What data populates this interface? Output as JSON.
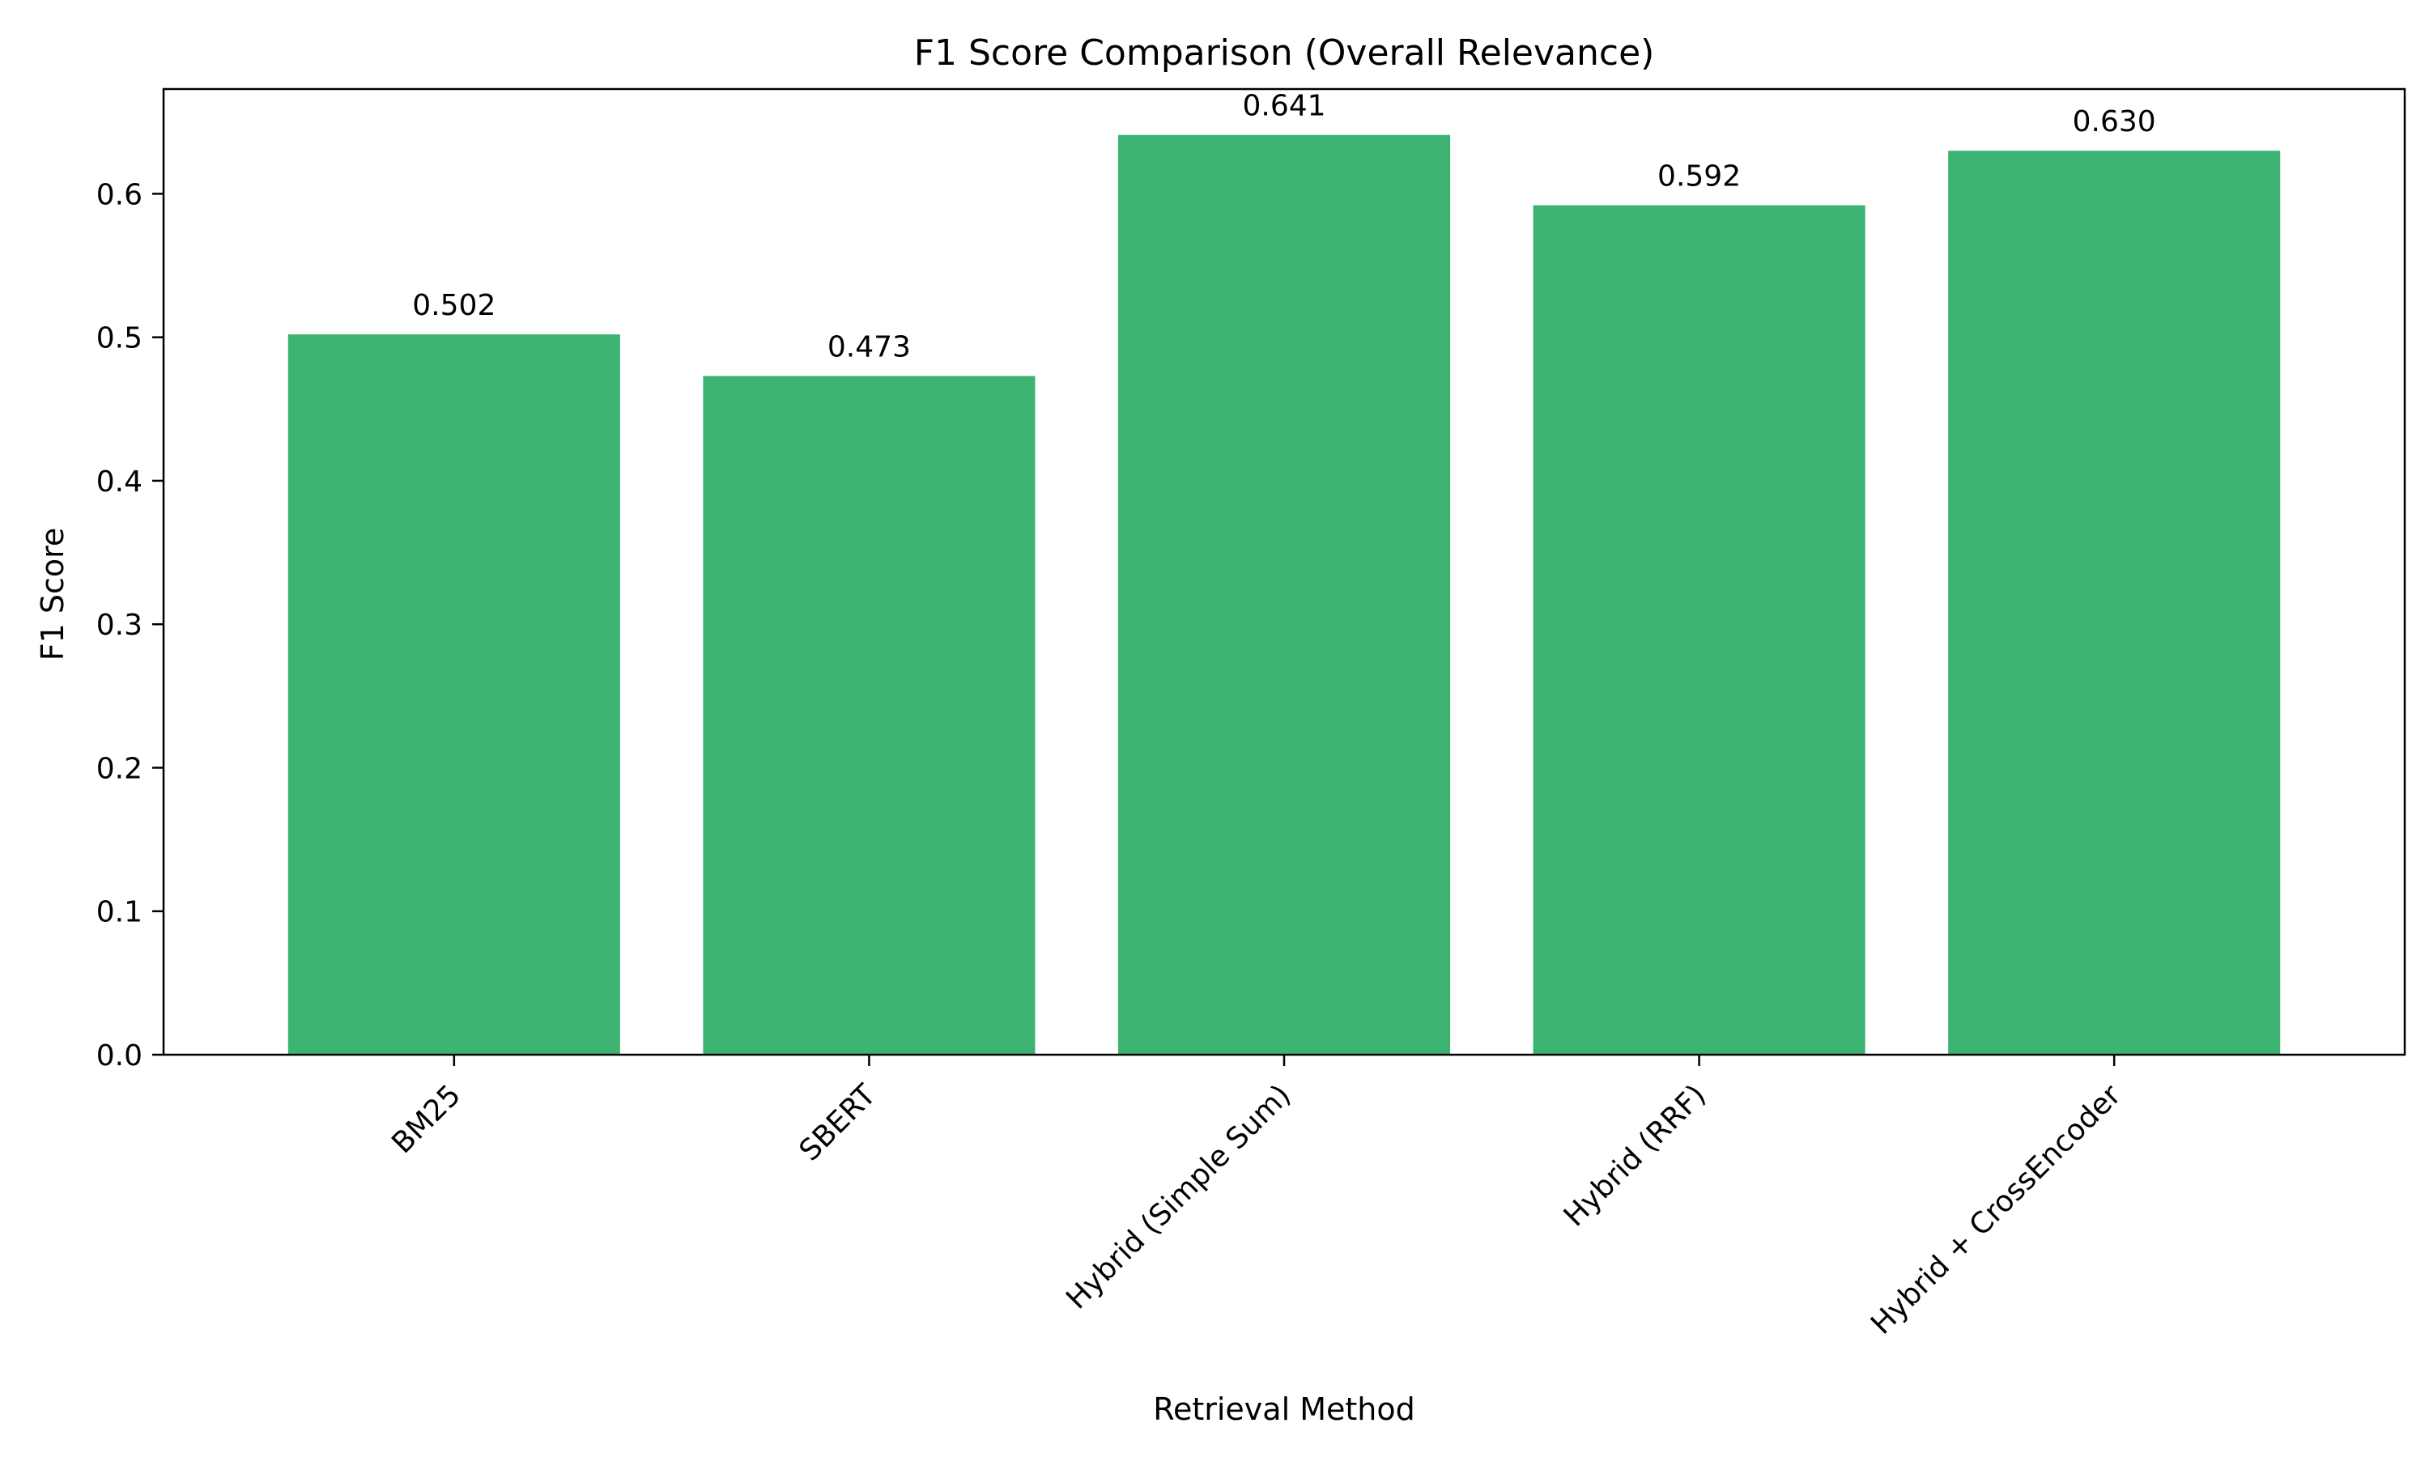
{
  "chart_data": {
    "type": "bar",
    "title": "F1 Score Comparison (Overall Relevance)",
    "xlabel": "Retrieval Method",
    "ylabel": "F1 Score",
    "categories": [
      "BM25",
      "SBERT",
      "Hybrid (Simple Sum)",
      "Hybrid (RRF)",
      "Hybrid + CrossEncoder"
    ],
    "values": [
      0.502,
      0.473,
      0.641,
      0.592,
      0.63
    ],
    "value_labels": [
      "0.502",
      "0.473",
      "0.641",
      "0.592",
      "0.630"
    ],
    "ylim": [
      0,
      0.673
    ],
    "yticks": [
      0.0,
      0.1,
      0.2,
      0.3,
      0.4,
      0.5,
      0.6
    ],
    "ytick_labels": [
      "0.0",
      "0.1",
      "0.2",
      "0.3",
      "0.4",
      "0.5",
      "0.6"
    ],
    "bar_color": "#3cb371",
    "grid": false,
    "legend": "none"
  }
}
